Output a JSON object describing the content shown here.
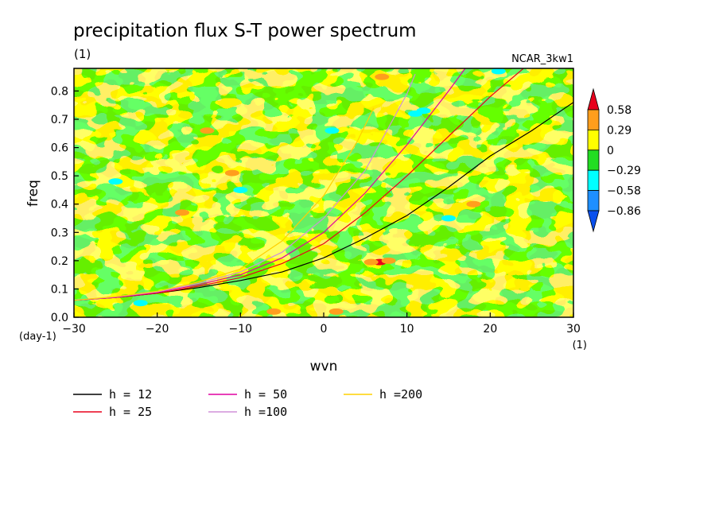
{
  "chart_data": {
    "type": "heatmap",
    "title": "precipitation flux S-T power spectrum",
    "subtitle": "(1)",
    "model_label": "NCAR_3kw1",
    "xlabel": "wvn",
    "ylabel": "freq",
    "x_unit": "(1)",
    "y_unit": "(day-1)",
    "xlim": [
      -30,
      30
    ],
    "ylim": [
      0,
      0.88
    ],
    "x_ticks": [
      -30,
      -20,
      -10,
      0,
      10,
      20,
      30
    ],
    "x_tick_labels": [
      "-30",
      "-20",
      "-10",
      "0",
      "10",
      "20",
      "30"
    ],
    "y_ticks": [
      0,
      0.1,
      0.2,
      0.3,
      0.4,
      0.5,
      0.6,
      0.7,
      0.8
    ],
    "y_tick_labels": [
      "0.0",
      "0.1",
      "0.2",
      "0.3",
      "0.4",
      "0.5",
      "0.6",
      "0.7",
      "0.8"
    ],
    "colorbar": {
      "levels": [
        0.58,
        0.29,
        0,
        -0.29,
        -0.58,
        -0.86
      ],
      "labels": [
        "0.58",
        "0.29",
        "0",
        "-0.29",
        "-0.58",
        "-0.86"
      ],
      "colors_top_to_bottom": [
        "#e8001c",
        "#ff9e1d",
        "#ffff00",
        "#22dd22",
        "#00ffff",
        "#1e8fff",
        "#0a50ee"
      ]
    },
    "dominant_fill_colors": [
      "#ffff00",
      "#22dd22"
    ],
    "highlight_patches": [
      {
        "x": 6.7,
        "y": 0.195,
        "color": "#e8001c"
      },
      {
        "x": 5.7,
        "y": 0.195,
        "color": "#ff9e1d"
      },
      {
        "x": 7.8,
        "y": 0.2,
        "color": "#ff9e1d"
      },
      {
        "x": -6,
        "y": 0.02,
        "color": "#ff9e1d"
      },
      {
        "x": 1.5,
        "y": 0.02,
        "color": "#ff9e1d"
      },
      {
        "x": -17,
        "y": 0.37,
        "color": "#ff9e1d"
      },
      {
        "x": -11,
        "y": 0.51,
        "color": "#ff9e1d"
      },
      {
        "x": 18,
        "y": 0.4,
        "color": "#ff9e1d"
      },
      {
        "x": 7,
        "y": 0.85,
        "color": "#ff9e1d"
      },
      {
        "x": -14,
        "y": 0.66,
        "color": "#ff9e1d"
      },
      {
        "x": 1,
        "y": 0.66,
        "color": "#00ffff"
      },
      {
        "x": 11,
        "y": 0.72,
        "color": "#00ffff"
      },
      {
        "x": 12,
        "y": 0.73,
        "color": "#00ffff"
      },
      {
        "x": -25,
        "y": 0.48,
        "color": "#00ffff"
      },
      {
        "x": -10,
        "y": 0.45,
        "color": "#00ffff"
      },
      {
        "x": -22,
        "y": 0.05,
        "color": "#00ffff"
      },
      {
        "x": 21,
        "y": 0.87,
        "color": "#00ffff"
      },
      {
        "x": 15,
        "y": 0.35,
        "color": "#00ffff"
      }
    ],
    "series": [
      {
        "name": "h = 12",
        "color": "#000000",
        "x": [
          -30,
          -25,
          -20,
          -15,
          -10,
          -5,
          0,
          5,
          10,
          15,
          20,
          25,
          30
        ],
        "y": [
          0.06,
          0.07,
          0.085,
          0.105,
          0.13,
          0.16,
          0.21,
          0.28,
          0.36,
          0.46,
          0.57,
          0.66,
          0.76
        ]
      },
      {
        "name": "h = 25",
        "color": "#e8001c",
        "x": [
          -30,
          -25,
          -20,
          -15,
          -10,
          -5,
          0,
          5,
          10,
          15,
          20,
          24
        ],
        "y": [
          0.06,
          0.07,
          0.085,
          0.11,
          0.14,
          0.19,
          0.26,
          0.37,
          0.5,
          0.64,
          0.78,
          0.88
        ]
      },
      {
        "name": "h = 50",
        "color": "#e000a0",
        "x": [
          -30,
          -25,
          -20,
          -15,
          -10,
          -5,
          0,
          5,
          10,
          15,
          17
        ],
        "y": [
          0.06,
          0.07,
          0.088,
          0.115,
          0.15,
          0.21,
          0.3,
          0.44,
          0.61,
          0.8,
          0.88
        ]
      },
      {
        "name": "h =100",
        "color": "#d090d8",
        "x": [
          -30,
          -25,
          -20,
          -15,
          -10,
          -5,
          0,
          5,
          10,
          11
        ],
        "y": [
          0.06,
          0.072,
          0.09,
          0.12,
          0.16,
          0.23,
          0.35,
          0.52,
          0.79,
          0.86
        ]
      },
      {
        "name": "h =200",
        "color": "#ffd000",
        "x": [
          -30,
          -25,
          -20,
          -15,
          -10,
          -5,
          0,
          4,
          6
        ],
        "y": [
          0.06,
          0.073,
          0.092,
          0.125,
          0.17,
          0.27,
          0.43,
          0.62,
          0.74
        ]
      }
    ]
  }
}
